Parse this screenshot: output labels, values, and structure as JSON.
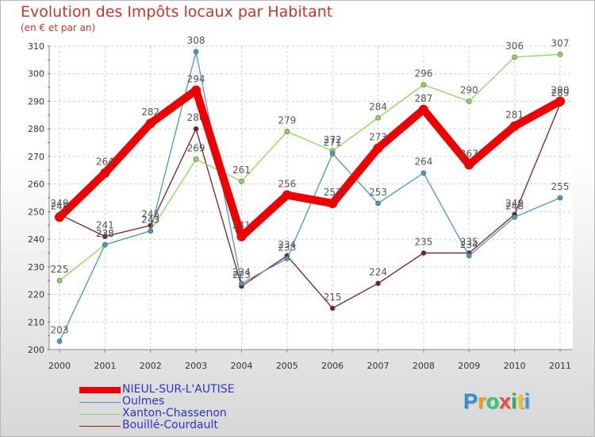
{
  "chart_data": {
    "type": "line",
    "title": "Evolution des Impôts locaux par Habitant",
    "subtitle": "(en € et par an)",
    "xlabel": "",
    "ylabel": "",
    "x": [
      "2000",
      "2001",
      "2002",
      "2003",
      "2004",
      "2005",
      "2006",
      "2007",
      "2008",
      "2009",
      "2010",
      "2011"
    ],
    "ylim": [
      200,
      310
    ],
    "yticks": [
      200,
      210,
      220,
      230,
      240,
      250,
      260,
      270,
      280,
      290,
      300,
      310
    ],
    "grid": true,
    "legend_position": "bottom-left",
    "series": [
      {
        "name": "NIEUL-SUR-L'AUTISE",
        "color": "#ee0000",
        "values": [
          248,
          264,
          282,
          294,
          241,
          256,
          253,
          273,
          287,
          267,
          281,
          290
        ]
      },
      {
        "name": "Oulmes",
        "color": "#4a96c8",
        "values": [
          203,
          238,
          243,
          308,
          224,
          233,
          271,
          253,
          264,
          234,
          248,
          255
        ]
      },
      {
        "name": "Xanton-Chassenon",
        "color": "#8fd65c",
        "values": [
          225,
          238,
          243,
          269,
          261,
          279,
          272,
          284,
          296,
          290,
          306,
          307
        ]
      },
      {
        "name": "Bouillé-Courdault",
        "color": "#7a1f1f",
        "values": [
          249,
          241,
          245,
          280,
          223,
          234,
          215,
          224,
          235,
          235,
          249,
          289
        ]
      }
    ]
  },
  "logo": {
    "letters": [
      "P",
      "r",
      "o",
      "x",
      "i",
      "t",
      "i"
    ],
    "colors": [
      "#2c8fd6",
      "#f39c12",
      "#2ecc71",
      "#e74c3c",
      "#27ae60",
      "#f1c40f",
      "#3498db"
    ]
  }
}
